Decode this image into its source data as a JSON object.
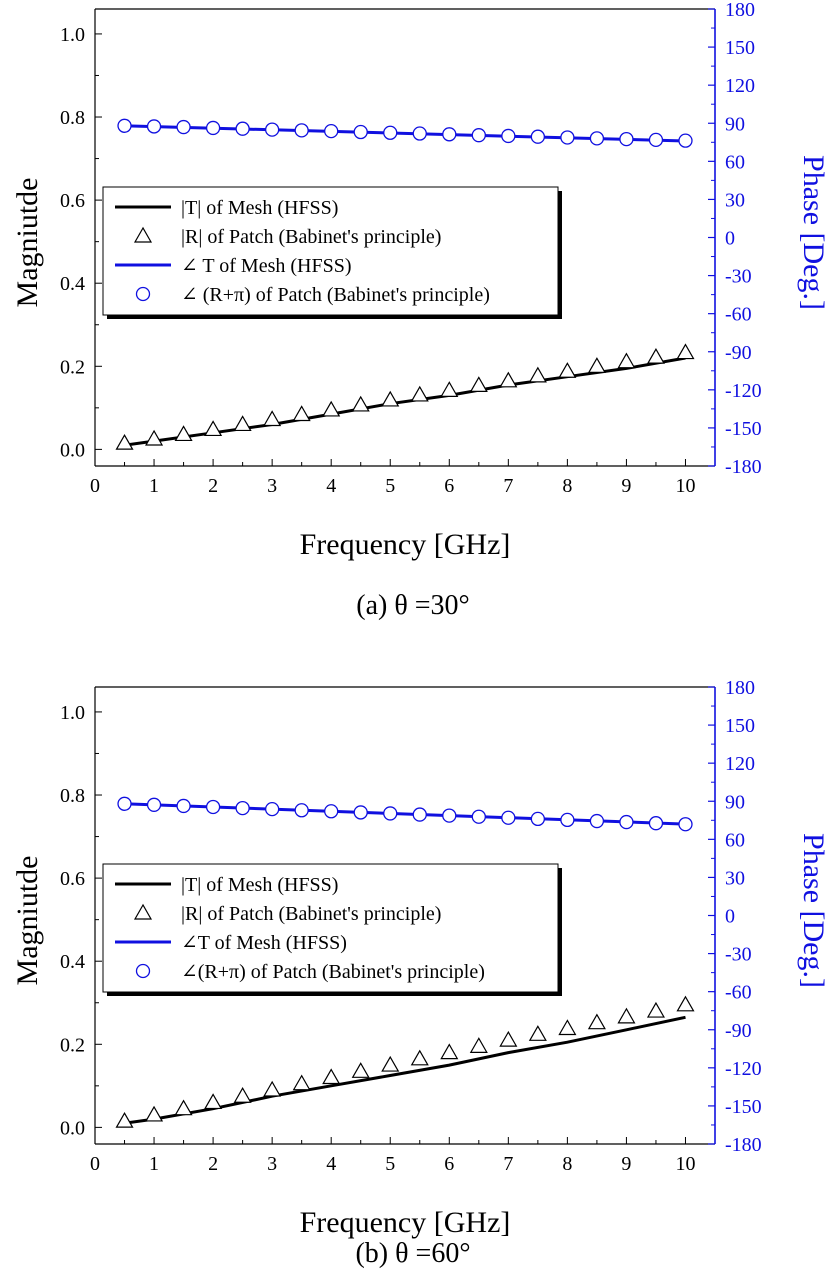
{
  "colors": {
    "magnitude": "#000000",
    "phase": "#1010e0",
    "legend_shadow": "#000000"
  },
  "chart_data": [
    {
      "type": "line",
      "caption": "(a)  θ =30°",
      "xlabel": "Frequency [GHz]",
      "ylabel": "Magniutde",
      "y2label": "Phase [Deg.]",
      "xlim": [
        0,
        10.5
      ],
      "ylim": [
        -0.04,
        1.06
      ],
      "y2lim": [
        -180,
        180
      ],
      "xticks": [
        0,
        1,
        2,
        3,
        4,
        5,
        6,
        7,
        8,
        9,
        10
      ],
      "yticks": [
        0.0,
        0.2,
        0.4,
        0.6,
        0.8,
        1.0
      ],
      "ytick_labels": [
        "0.0",
        "0.2",
        "0.4",
        "0.6",
        "0.8",
        "1.0"
      ],
      "y2ticks": [
        180,
        150,
        120,
        90,
        60,
        30,
        0,
        -30,
        -60,
        -90,
        -120,
        -150,
        -180
      ],
      "series": [
        {
          "name": "|T| of Mesh (HFSS)",
          "axis": "left",
          "style": "line",
          "x": [
            0.5,
            1,
            2,
            3,
            4,
            5,
            6,
            7,
            8,
            9,
            10
          ],
          "values": [
            0.01,
            0.02,
            0.04,
            0.06,
            0.085,
            0.11,
            0.13,
            0.155,
            0.175,
            0.195,
            0.22
          ]
        },
        {
          "name": "|R| of Patch (Babinet's principle)",
          "axis": "left",
          "style": "triangle",
          "x": [
            0.5,
            1,
            1.5,
            2,
            2.5,
            3,
            3.5,
            4,
            4.5,
            5,
            5.5,
            6,
            6.5,
            7,
            7.5,
            8,
            8.5,
            9,
            9.5,
            10
          ],
          "values": [
            0.015,
            0.025,
            0.036,
            0.048,
            0.06,
            0.072,
            0.084,
            0.095,
            0.107,
            0.119,
            0.131,
            0.142,
            0.154,
            0.165,
            0.177,
            0.188,
            0.2,
            0.211,
            0.222,
            0.233
          ]
        },
        {
          "name": "∠ T of Mesh (HFSS)",
          "axis": "right",
          "style": "line",
          "x": [
            0.5,
            10
          ],
          "values": [
            88,
            76
          ]
        },
        {
          "name": "∠ (R+π) of Patch (Babinet's principle)",
          "axis": "right",
          "style": "circle",
          "x": [
            0.5,
            1,
            1.5,
            2,
            2.5,
            3,
            3.5,
            4,
            4.5,
            5,
            5.5,
            6,
            6.5,
            7,
            7.5,
            8,
            8.5,
            9,
            9.5,
            10
          ],
          "values": [
            88,
            87.5,
            87,
            86.3,
            85.7,
            85,
            84.4,
            83.8,
            83.1,
            82.5,
            81.9,
            81.3,
            80.6,
            80,
            79.4,
            78.8,
            78.1,
            77.5,
            76.9,
            76.3
          ]
        }
      ]
    },
    {
      "type": "line",
      "caption": "(b)  θ =60°",
      "xlabel": "Frequency [GHz]",
      "ylabel": "Magniutde",
      "y2label": "Phase [Deg.]",
      "xlim": [
        0,
        10.5
      ],
      "ylim": [
        -0.04,
        1.06
      ],
      "y2lim": [
        -180,
        180
      ],
      "xticks": [
        0,
        1,
        2,
        3,
        4,
        5,
        6,
        7,
        8,
        9,
        10
      ],
      "yticks": [
        0.0,
        0.2,
        0.4,
        0.6,
        0.8,
        1.0
      ],
      "ytick_labels": [
        "0.0",
        "0.2",
        "0.4",
        "0.6",
        "0.8",
        "1.0"
      ],
      "y2ticks": [
        180,
        150,
        120,
        90,
        60,
        30,
        0,
        -30,
        -60,
        -90,
        -120,
        -150,
        -180
      ],
      "series": [
        {
          "name": "|T| of Mesh (HFSS)",
          "axis": "left",
          "style": "line",
          "x": [
            0.5,
            1,
            2,
            3,
            4,
            5,
            6,
            7,
            8,
            9,
            10
          ],
          "values": [
            0.01,
            0.02,
            0.045,
            0.075,
            0.1,
            0.125,
            0.15,
            0.18,
            0.205,
            0.235,
            0.265
          ]
        },
        {
          "name": "|R| of Patch (Babinet's principle)",
          "axis": "left",
          "style": "triangle",
          "x": [
            0.5,
            1,
            1.5,
            2,
            2.5,
            3,
            3.5,
            4,
            4.5,
            5,
            5.5,
            6,
            6.5,
            7,
            7.5,
            8,
            8.5,
            9,
            9.5,
            10
          ],
          "values": [
            0.015,
            0.03,
            0.045,
            0.06,
            0.075,
            0.09,
            0.105,
            0.12,
            0.135,
            0.15,
            0.165,
            0.18,
            0.195,
            0.21,
            0.224,
            0.238,
            0.252,
            0.266,
            0.28,
            0.295
          ]
        },
        {
          "name": "∠T of Mesh (HFSS)",
          "axis": "right",
          "style": "line",
          "x": [
            0.5,
            10
          ],
          "values": [
            88,
            72
          ]
        },
        {
          "name": "∠(R+π) of Patch (Babinet's principle)",
          "axis": "right",
          "style": "circle",
          "x": [
            0.5,
            1,
            1.5,
            2,
            2.5,
            3,
            3.5,
            4,
            4.5,
            5,
            5.5,
            6,
            6.5,
            7,
            7.5,
            8,
            8.5,
            9,
            9.5,
            10
          ],
          "values": [
            88,
            87.2,
            86.3,
            85.5,
            84.6,
            83.8,
            82.9,
            82.1,
            81.2,
            80.4,
            79.5,
            78.7,
            77.8,
            77,
            76.1,
            75.3,
            74.4,
            73.6,
            72.7,
            71.9
          ]
        }
      ]
    }
  ]
}
